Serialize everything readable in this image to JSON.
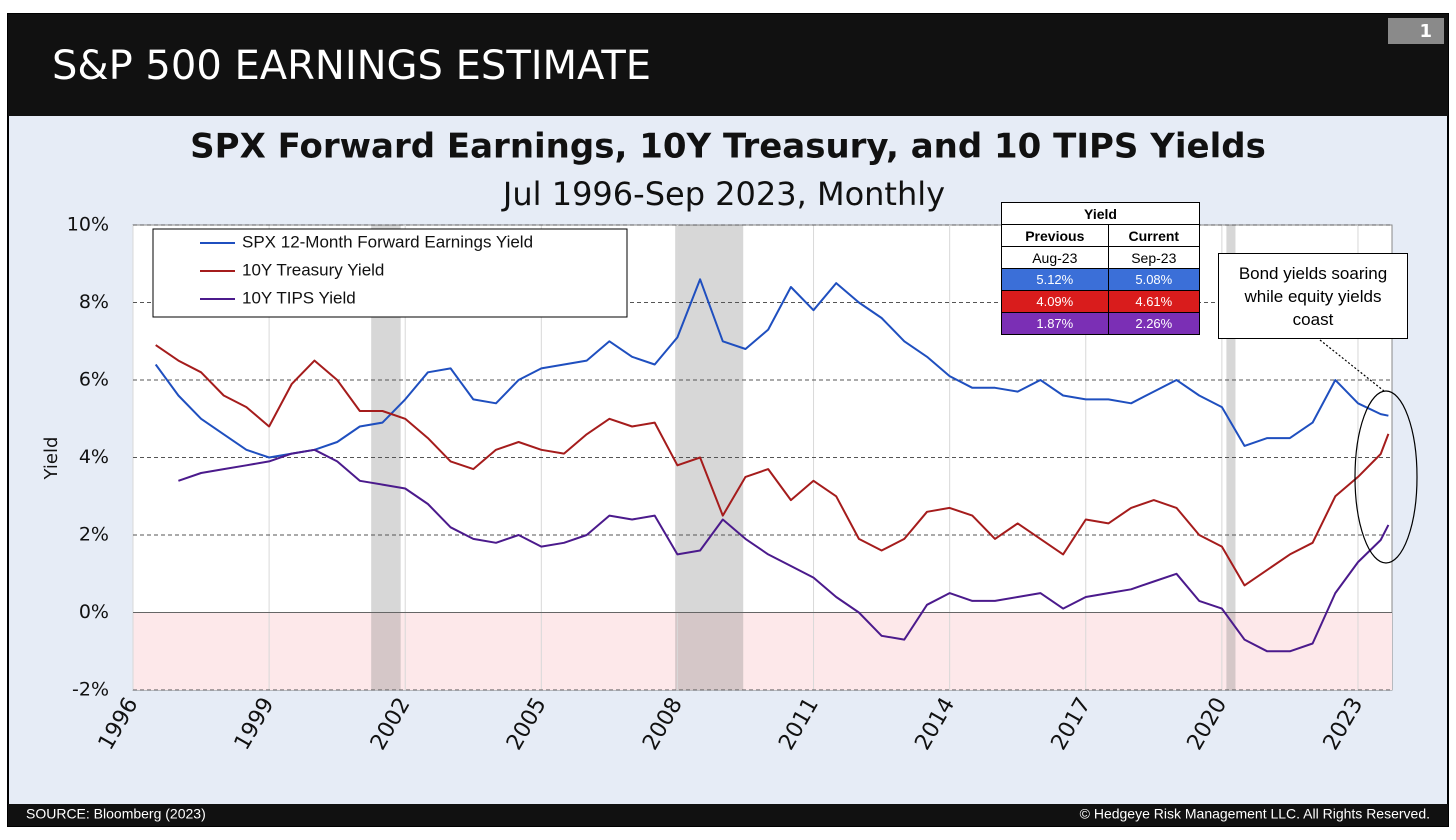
{
  "header": {
    "title": "S&P 500 EARNINGS ESTIMATE",
    "page": "1"
  },
  "chart_data": {
    "type": "line",
    "title": "SPX Forward Earnings, 10Y Treasury, and 10 TIPS Yields",
    "subtitle": "Jul 1996-Sep 2023, Monthly",
    "y_label": "Yield",
    "x": [
      1996.5,
      1997,
      1997.5,
      1998,
      1998.5,
      1999,
      1999.5,
      2000,
      2000.5,
      2001,
      2001.5,
      2002,
      2002.5,
      2003,
      2003.5,
      2004,
      2004.5,
      2005,
      2005.5,
      2006,
      2006.5,
      2007,
      2007.5,
      2008,
      2008.5,
      2009,
      2009.5,
      2010,
      2010.5,
      2011,
      2011.5,
      2012,
      2012.5,
      2013,
      2013.5,
      2014,
      2014.5,
      2015,
      2015.5,
      2016,
      2016.5,
      2017,
      2017.5,
      2018,
      2018.5,
      2019,
      2019.5,
      2020,
      2020.5,
      2021,
      2021.5,
      2022,
      2022.5,
      2023,
      2023.5,
      2023.67
    ],
    "series": [
      {
        "name": "SPX 12-Month Forward Earnings Yield",
        "color": "#1f4fbf",
        "values": [
          6.4,
          5.6,
          5.0,
          4.6,
          4.2,
          4.0,
          4.1,
          4.2,
          4.4,
          4.8,
          4.9,
          5.5,
          6.2,
          6.3,
          5.5,
          5.4,
          6.0,
          6.3,
          6.4,
          6.5,
          7.0,
          6.6,
          6.4,
          7.1,
          8.6,
          7.0,
          6.8,
          7.3,
          8.4,
          7.8,
          8.5,
          8.0,
          7.6,
          7.0,
          6.6,
          6.1,
          5.8,
          5.8,
          5.7,
          6.0,
          5.6,
          5.5,
          5.5,
          5.4,
          5.7,
          6.0,
          5.6,
          5.3,
          4.3,
          4.5,
          4.5,
          4.9,
          6.0,
          5.4,
          5.12,
          5.08
        ]
      },
      {
        "name": "10Y Treasury Yield",
        "color": "#a51c1c",
        "values": [
          6.9,
          6.5,
          6.2,
          5.6,
          5.3,
          4.8,
          5.9,
          6.5,
          6.0,
          5.2,
          5.2,
          5.0,
          4.5,
          3.9,
          3.7,
          4.2,
          4.4,
          4.2,
          4.1,
          4.6,
          5.0,
          4.8,
          4.9,
          3.8,
          4.0,
          2.5,
          3.5,
          3.7,
          2.9,
          3.4,
          3.0,
          1.9,
          1.6,
          1.9,
          2.6,
          2.7,
          2.5,
          1.9,
          2.3,
          1.9,
          1.5,
          2.4,
          2.3,
          2.7,
          2.9,
          2.7,
          2.0,
          1.7,
          0.7,
          1.1,
          1.5,
          1.8,
          3.0,
          3.5,
          4.09,
          4.61
        ]
      },
      {
        "name": "10Y TIPS Yield",
        "color": "#4b1a8c",
        "values": [
          null,
          3.4,
          3.6,
          3.7,
          3.8,
          3.9,
          4.1,
          4.2,
          3.9,
          3.4,
          3.3,
          3.2,
          2.8,
          2.2,
          1.9,
          1.8,
          2.0,
          1.7,
          1.8,
          2.0,
          2.5,
          2.4,
          2.5,
          1.5,
          1.6,
          2.4,
          1.9,
          1.5,
          1.2,
          0.9,
          0.4,
          0.0,
          -0.6,
          -0.7,
          0.2,
          0.5,
          0.3,
          0.3,
          0.4,
          0.5,
          0.1,
          0.4,
          0.5,
          0.6,
          0.8,
          1.0,
          0.3,
          0.1,
          -0.7,
          -1.0,
          -1.0,
          -0.8,
          0.5,
          1.3,
          1.87,
          2.26
        ]
      }
    ],
    "shaded_periods": [
      [
        2001.25,
        2001.9
      ],
      [
        2007.95,
        2009.45
      ],
      [
        2020.1,
        2020.3
      ]
    ],
    "xlim": [
      1996,
      2023.75
    ],
    "xticks": [
      1996,
      1999,
      2002,
      2005,
      2008,
      2011,
      2014,
      2017,
      2020,
      2023
    ],
    "ylim": [
      -2,
      10
    ],
    "yticks": [
      {
        "value": -2,
        "label": "-2%"
      },
      {
        "value": 0,
        "label": "0%"
      },
      {
        "value": 2,
        "label": "2%"
      },
      {
        "value": 4,
        "label": "4%"
      },
      {
        "value": 6,
        "label": "6%"
      },
      {
        "value": 8,
        "label": "8%"
      },
      {
        "value": 10,
        "label": "10%"
      }
    ],
    "grid": true,
    "legend": "top-left",
    "inset_table": {
      "title": "Yield",
      "columns": [
        "Previous",
        "Current"
      ],
      "dates": [
        "Aug-23",
        "Sep-23"
      ],
      "rows": [
        [
          "5.12%",
          "5.08%"
        ],
        [
          "4.09%",
          "4.61%"
        ],
        [
          "1.87%",
          "2.26%"
        ]
      ],
      "row_colors": [
        "#3b6fd8",
        "#d91c1c",
        "#7b2fb5"
      ]
    },
    "annotation": "Bond yields soaring while equity yields coast"
  },
  "footer": {
    "source": "SOURCE: Bloomberg (2023)",
    "copyright": "© Hedgeye Risk Management LLC. All Rights Reserved."
  }
}
